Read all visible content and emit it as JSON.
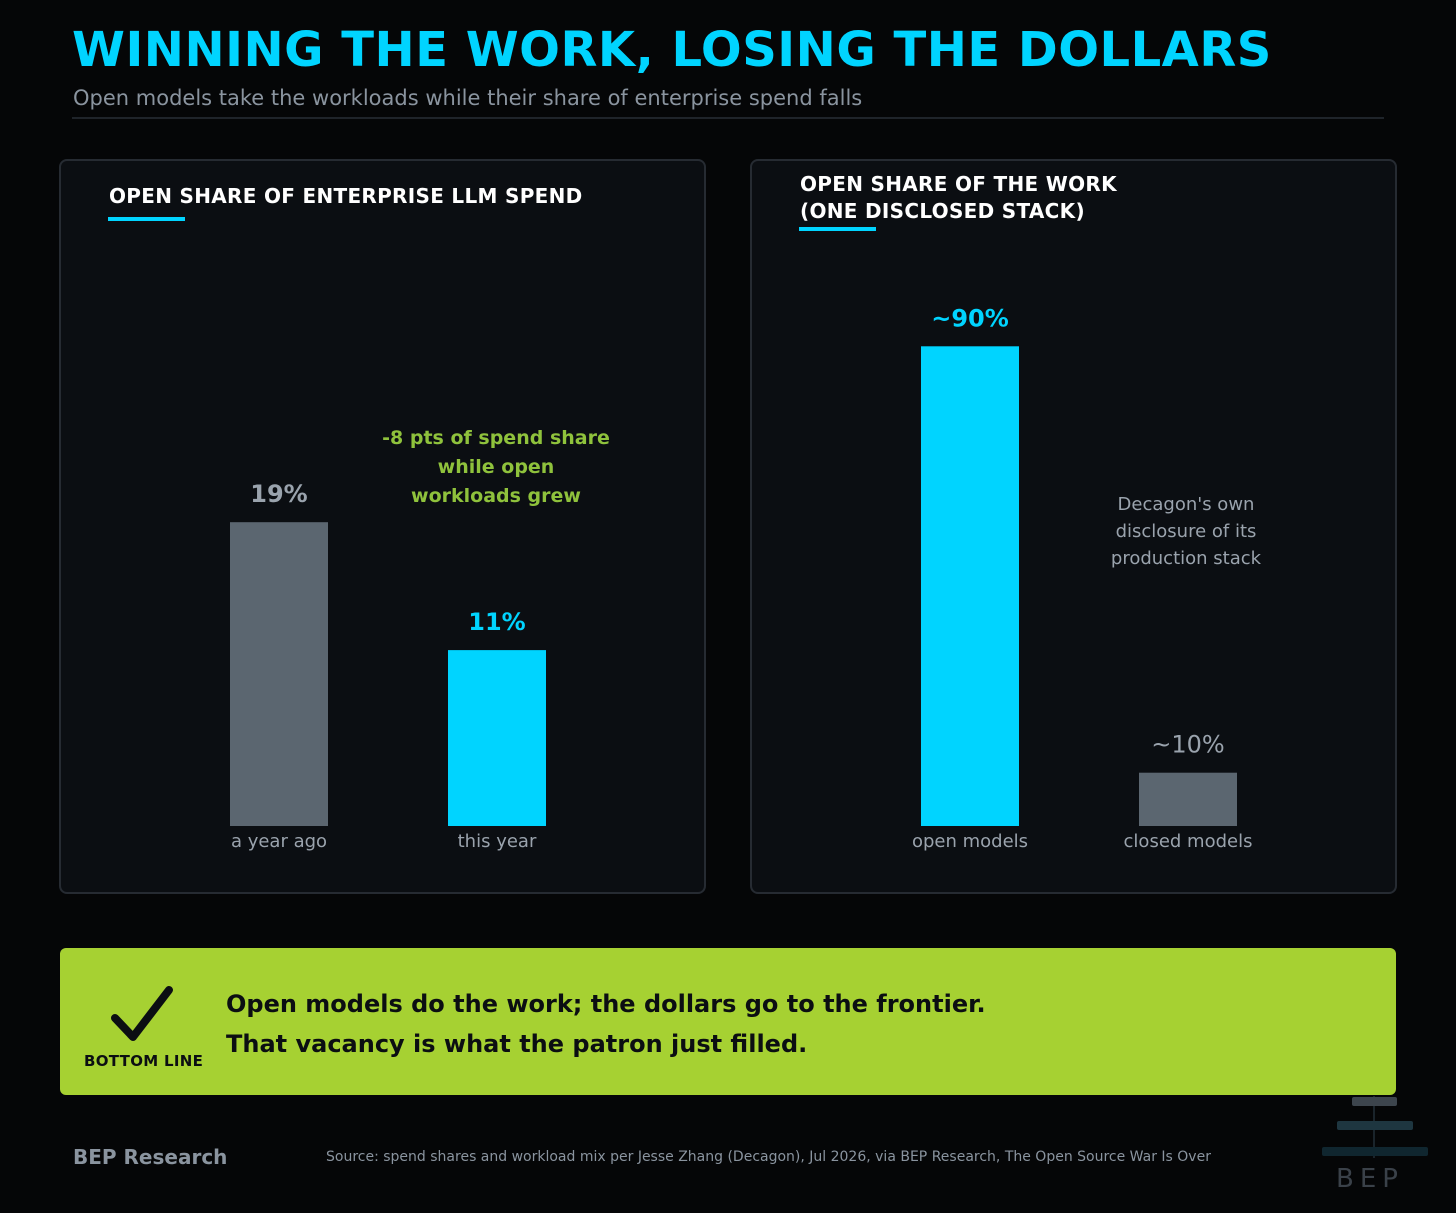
{
  "header": {
    "title": "WINNING THE WORK, LOSING THE DOLLARS",
    "subtitle": "Open models take the workloads while their share of enterprise spend falls"
  },
  "colors": {
    "accent": "#00d4ff",
    "muted_bar": "#5b6670",
    "highlight_green": "#a6d132",
    "annotation_green": "#8fc23c",
    "panel_bg": "#0b0e12"
  },
  "chart_data": [
    {
      "type": "bar",
      "title_lines": [
        "OPEN SHARE OF ENTERPRISE LLM SPEND"
      ],
      "categories": [
        "a year ago",
        "this year"
      ],
      "values": [
        19,
        11
      ],
      "value_labels": [
        "19%",
        "11%"
      ],
      "bar_colors": [
        "#5b6670",
        "#00d4ff"
      ],
      "label_colors": [
        "#9aa3ad",
        "#00d4ff"
      ],
      "ylim": [
        0,
        100
      ],
      "grid": false,
      "annotation_lines": [
        "-8 pts of spend share",
        "while open",
        "workloads grew"
      ]
    },
    {
      "type": "bar",
      "title_lines": [
        "OPEN SHARE OF THE WORK",
        "(ONE DISCLOSED STACK)"
      ],
      "categories": [
        "open models",
        "closed models"
      ],
      "values": [
        90,
        10
      ],
      "value_labels": [
        "~90%",
        "~10%"
      ],
      "bar_colors": [
        "#00d4ff",
        "#5b6670"
      ],
      "label_colors": [
        "#00d4ff",
        "#9aa3ad"
      ],
      "ylim": [
        0,
        100
      ],
      "grid": false,
      "annotation_lines": [
        "Decagon's own",
        "disclosure of its",
        "production stack"
      ]
    }
  ],
  "bottom_line": {
    "label": "BOTTOM LINE",
    "icon": "checkmark-icon",
    "lines": [
      "Open models do the work; the dollars go to the frontier.",
      "That vacancy is what the patron just filled."
    ]
  },
  "footer": {
    "brand": "BEP Research",
    "source": "Source: spend shares and workload mix per Jesse Zhang (Decagon), Jul 2026, via BEP Research, The Open Source War Is Over",
    "logo_text": "BEP",
    "logo_icon": "bep-logo-icon"
  }
}
